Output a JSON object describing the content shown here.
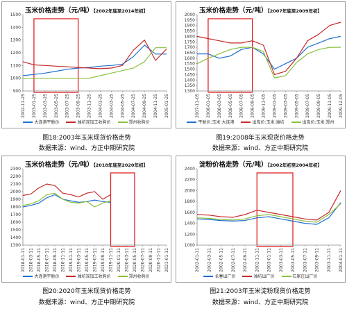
{
  "figures": [
    {
      "caption": "图18:2003年玉米现货价格走势",
      "source": "数据来源：wind、方正中期研究院"
    },
    {
      "caption": "图19:2008年玉米现货价格走势",
      "source": "数据来源：wind、方正中期研究院"
    },
    {
      "caption": "图20:2020年玉米现货价格走势",
      "source": "数据来源：wind、方正中期研究院"
    },
    {
      "caption": "图21:2003年玉米淀粉现货价格走势",
      "source": "数据来源：wind、方正中期研究院"
    }
  ],
  "colors": {
    "blue": "#1f6fd1",
    "red": "#c62828",
    "green": "#8bbf3f",
    "highlight": "#e02020",
    "axis": "#888888",
    "grid": "#dddddd"
  },
  "chart_data": [
    {
      "type": "line",
      "title": "玉米价格走势（元/吨）",
      "subtitle": "【2002年底至2014年初】",
      "xlabel": "",
      "ylabel": "",
      "ylim": [
        900,
        1500
      ],
      "yticks": [
        900,
        1000,
        1100,
        1200,
        1300,
        1400,
        1500
      ],
      "x": [
        "2002-11-25",
        "2003-01-25",
        "2003-03-25",
        "2003-05-25",
        "2003-07-25",
        "2003-09-25",
        "2003-11-25",
        "2004-01-25",
        "2004-03-25",
        "2004-05-25",
        "2004-07-25",
        "2004-09-25",
        "2004-11-25",
        "2005-01-25"
      ],
      "series": [
        {
          "name": "大连港平舱价",
          "color": "#1f6fd1",
          "values": [
            1020,
            1030,
            1040,
            1055,
            1070,
            1080,
            1085,
            1095,
            1100,
            1110,
            1170,
            1260,
            1190,
            1190
          ]
        },
        {
          "name": "潍坊深加工收购价",
          "color": "#c62828",
          "values": [
            1130,
            1105,
            1100,
            1095,
            1090,
            1085,
            1080,
            1075,
            1080,
            1100,
            1220,
            1300,
            1140,
            1230
          ]
        },
        {
          "name": "郑州收购价",
          "color": "#8bbf3f",
          "values": [
            1000,
            1000,
            1000,
            1000,
            1000,
            1000,
            1000,
            1020,
            1040,
            1060,
            1080,
            1130,
            1240,
            1240
          ]
        }
      ],
      "highlight_range": [
        "2003-01-25",
        "2003-09-25"
      ],
      "grid": false,
      "legend": "bottom"
    },
    {
      "type": "line",
      "title": "玉米价格走势（元/吨）",
      "subtitle": "【2007年底至2009年初】",
      "xlabel": "",
      "ylabel": "",
      "ylim": [
        1300,
        2000
      ],
      "yticks": [
        1300,
        1350,
        1400,
        1450,
        1500,
        1550,
        1600,
        1650,
        1700,
        1750,
        1800,
        1850,
        1900,
        1950,
        2000
      ],
      "x": [
        "2007-11-05",
        "2008-01-05",
        "2008-03-05",
        "2008-05-05",
        "2008-07-05",
        "2008-09-05",
        "2008-11-05",
        "2009-01-05",
        "2009-03-05",
        "2009-05-05",
        "2009-07-05",
        "2009-09-05",
        "2009-11-05",
        "2009-12-05"
      ],
      "series": [
        {
          "name": "平舱价:玉米:大连港",
          "color": "#1f6fd1",
          "values": [
            1640,
            1640,
            1600,
            1620,
            1680,
            1700,
            1640,
            1500,
            1550,
            1600,
            1700,
            1740,
            1780,
            1800
          ]
        },
        {
          "name": "出库价:玉米:潍坊",
          "color": "#c62828",
          "values": [
            1800,
            1780,
            1760,
            1740,
            1740,
            1760,
            1720,
            1450,
            1480,
            1600,
            1760,
            1820,
            1900,
            1930
          ]
        },
        {
          "name": "出库价:玉米:郑州",
          "color": "#8bbf3f",
          "values": [
            1550,
            1600,
            1640,
            1680,
            1700,
            1700,
            1660,
            1420,
            1440,
            1560,
            1640,
            1680,
            1700,
            1700
          ]
        }
      ],
      "highlight_range": [
        "2008-01-05",
        "2008-09-05"
      ],
      "grid": false,
      "legend": "bottom"
    },
    {
      "type": "line",
      "title": "玉米价格走势（元/吨）",
      "subtitle": "【2018年底至2020年初】",
      "xlabel": "",
      "ylabel": "",
      "ylim": [
        1300,
        2300
      ],
      "yticks": [
        1300,
        1400,
        1500,
        1600,
        1700,
        1800,
        1900,
        2000,
        2100,
        2200,
        2300
      ],
      "x": [
        "2018-01-11",
        "2018-03-11",
        "2018-05-11",
        "2018-07-11",
        "2018-09-11",
        "2018-11-11",
        "2019-01-11",
        "2019-03-11",
        "2019-05-11",
        "2019-07-11",
        "2019-09-11",
        "2019-11-11",
        "2020-01-11",
        "2020-03-11",
        "2020-05-11",
        "2020-07-11",
        "2020-09-11",
        "2020-11-11",
        "2021-01-11"
      ],
      "series": [
        {
          "name": "大连港平舱价",
          "color": "#1f6fd1",
          "values": [
            1800,
            1820,
            1850,
            1920,
            1960,
            1900,
            1880,
            1860,
            1870,
            1890,
            1870,
            1860,
            null,
            null,
            null,
            null,
            null,
            null,
            null
          ]
        },
        {
          "name": "潍坊深加工收购价",
          "color": "#c62828",
          "values": [
            1950,
            1970,
            2050,
            2100,
            2080,
            1980,
            1960,
            1930,
            1980,
            2000,
            1900,
            1960,
            null,
            null,
            null,
            null,
            null,
            null,
            null
          ]
        },
        {
          "name": "郑州收购价",
          "color": "#8bbf3f",
          "values": [
            1820,
            1840,
            1880,
            1960,
            1980,
            1900,
            1860,
            1850,
            1870,
            1800,
            1850,
            1880,
            null,
            null,
            null,
            null,
            null,
            null,
            null
          ]
        }
      ],
      "highlight_range": [
        "2019-11-11",
        "2020-05-11"
      ],
      "grid": false,
      "legend": "bottom"
    },
    {
      "type": "line",
      "title": "淀粉价格走势（元/吨）",
      "subtitle": "【2002年初至2004年初】",
      "xlabel": "",
      "ylabel": "",
      "ylim": [
        1000,
        2400
      ],
      "yticks": [
        1000,
        1200,
        1400,
        1600,
        1800,
        2000,
        2200,
        2400
      ],
      "x": [
        "2002-01-11",
        "2002-03-11",
        "2002-05-11",
        "2002-07-11",
        "2002-09-11",
        "2002-11-11",
        "2003-01-11",
        "2003-03-11",
        "2003-05-11",
        "2003-07-11",
        "2003-09-11",
        "2003-11-11",
        "2004-01-11"
      ],
      "series": [
        {
          "name": "长春出厂价",
          "color": "#1f6fd1",
          "values": [
            1480,
            1470,
            1450,
            1440,
            1450,
            1500,
            1520,
            1480,
            1440,
            1400,
            1380,
            1500,
            1780
          ]
        },
        {
          "name": "潍坊出厂价",
          "color": "#c62828",
          "values": [
            1560,
            1550,
            1520,
            1510,
            1560,
            1640,
            1600,
            1560,
            1520,
            1480,
            1460,
            1600,
            2000
          ]
        },
        {
          "name": "石家庄出厂价",
          "color": "#8bbf3f",
          "values": [
            1500,
            1490,
            1470,
            1460,
            1480,
            1540,
            1560,
            1520,
            1480,
            1440,
            1420,
            1560,
            1760
          ]
        }
      ],
      "highlight_range": [
        "2002-11-11",
        "2003-05-11"
      ],
      "grid": false,
      "legend": "bottom"
    }
  ]
}
